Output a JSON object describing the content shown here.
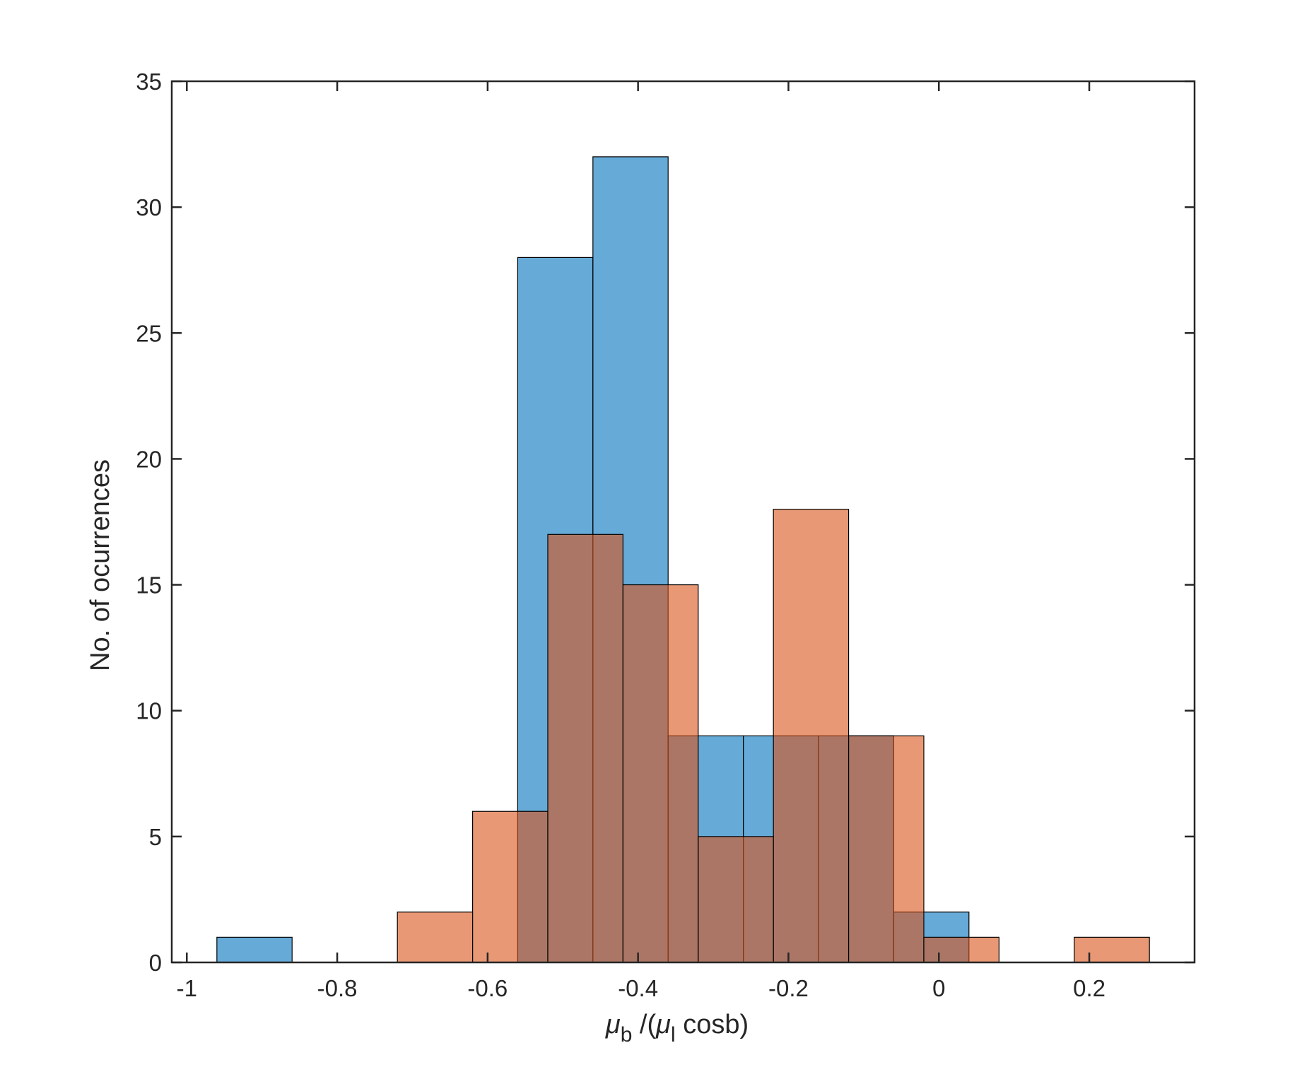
{
  "chart_data": {
    "type": "bar",
    "title": "",
    "ylabel": "No. of ocurrences",
    "xlabel": {
      "mu1": "μ",
      "sub1": "b",
      "mid": " /(",
      "mu2": "μ",
      "sub2": "l",
      "end": " cosb)"
    },
    "xlim": [
      -1.02,
      0.34
    ],
    "ylim": [
      0,
      35
    ],
    "xticks": [
      -1,
      -0.8,
      -0.6,
      -0.4,
      -0.2,
      0,
      0.2
    ],
    "xtick_labels": [
      "-1",
      "-0.8",
      "-0.6",
      "-0.4",
      "-0.2",
      "0",
      "0.2"
    ],
    "yticks": [
      0,
      5,
      10,
      15,
      20,
      25,
      30,
      35
    ],
    "ytick_labels": [
      "0",
      "5",
      "10",
      "15",
      "20",
      "25",
      "30",
      "35"
    ],
    "grid": false,
    "series": [
      {
        "color": "#0072bd",
        "bins": [
          {
            "x0": -0.96,
            "x1": -0.86,
            "count": 1
          },
          {
            "x0": -0.56,
            "x1": -0.46,
            "count": 28
          },
          {
            "x0": -0.46,
            "x1": -0.36,
            "count": 32
          },
          {
            "x0": -0.36,
            "x1": -0.26,
            "count": 9
          },
          {
            "x0": -0.26,
            "x1": -0.16,
            "count": 9
          },
          {
            "x0": -0.16,
            "x1": -0.06,
            "count": 9
          },
          {
            "x0": -0.06,
            "x1": 0.04,
            "count": 2
          }
        ]
      },
      {
        "color": "#d95319",
        "bins": [
          {
            "x0": -0.72,
            "x1": -0.62,
            "count": 2
          },
          {
            "x0": -0.62,
            "x1": -0.52,
            "count": 6
          },
          {
            "x0": -0.52,
            "x1": -0.42,
            "count": 17
          },
          {
            "x0": -0.42,
            "x1": -0.32,
            "count": 15
          },
          {
            "x0": -0.32,
            "x1": -0.22,
            "count": 5
          },
          {
            "x0": -0.22,
            "x1": -0.12,
            "count": 18
          },
          {
            "x0": -0.12,
            "x1": -0.02,
            "count": 9
          },
          {
            "x0": -0.02,
            "x1": 0.08,
            "count": 1
          },
          {
            "x0": 0.18,
            "x1": 0.28,
            "count": 1
          }
        ]
      }
    ]
  }
}
